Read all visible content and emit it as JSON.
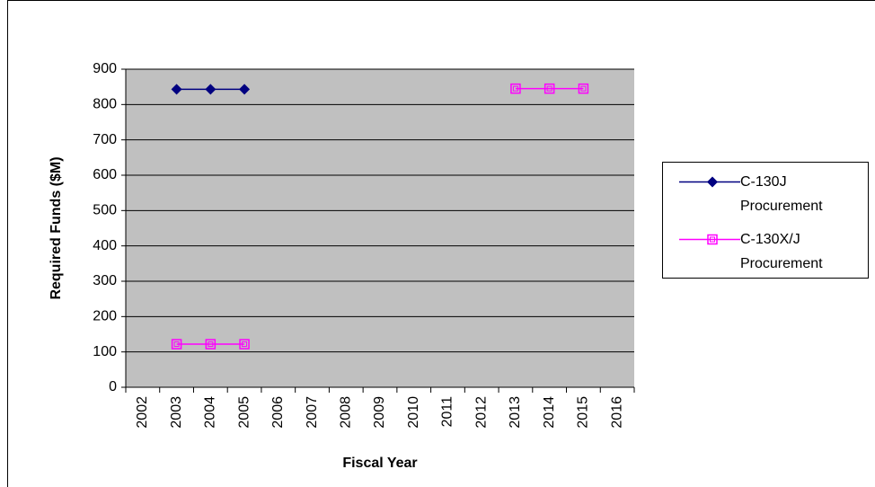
{
  "chart_data": {
    "type": "line",
    "x_label": "Fiscal Year",
    "y_label": "Required Funds ($M)",
    "categories": [
      "2002",
      "2003",
      "2004",
      "2005",
      "2006",
      "2007",
      "2008",
      "2009",
      "2010",
      "2011",
      "2012",
      "2013",
      "2014",
      "2015",
      "2016"
    ],
    "series": [
      {
        "name": "C-130J Procurement",
        "color": "#000080",
        "marker": "diamond",
        "values": [
          null,
          843,
          843,
          843,
          null,
          null,
          null,
          null,
          null,
          null,
          null,
          null,
          null,
          null,
          null
        ]
      },
      {
        "name": "C-130X/J Procurement",
        "color": "#ff00ff",
        "marker": "square",
        "values": [
          null,
          122,
          122,
          122,
          null,
          null,
          null,
          null,
          null,
          null,
          null,
          845,
          845,
          845,
          null
        ]
      }
    ],
    "ylim": [
      0,
      900
    ],
    "yticks": [
      0,
      100,
      200,
      300,
      400,
      500,
      600,
      700,
      800,
      900
    ],
    "grid": true,
    "plot_background": "#c0c0c0",
    "legend": "right"
  }
}
